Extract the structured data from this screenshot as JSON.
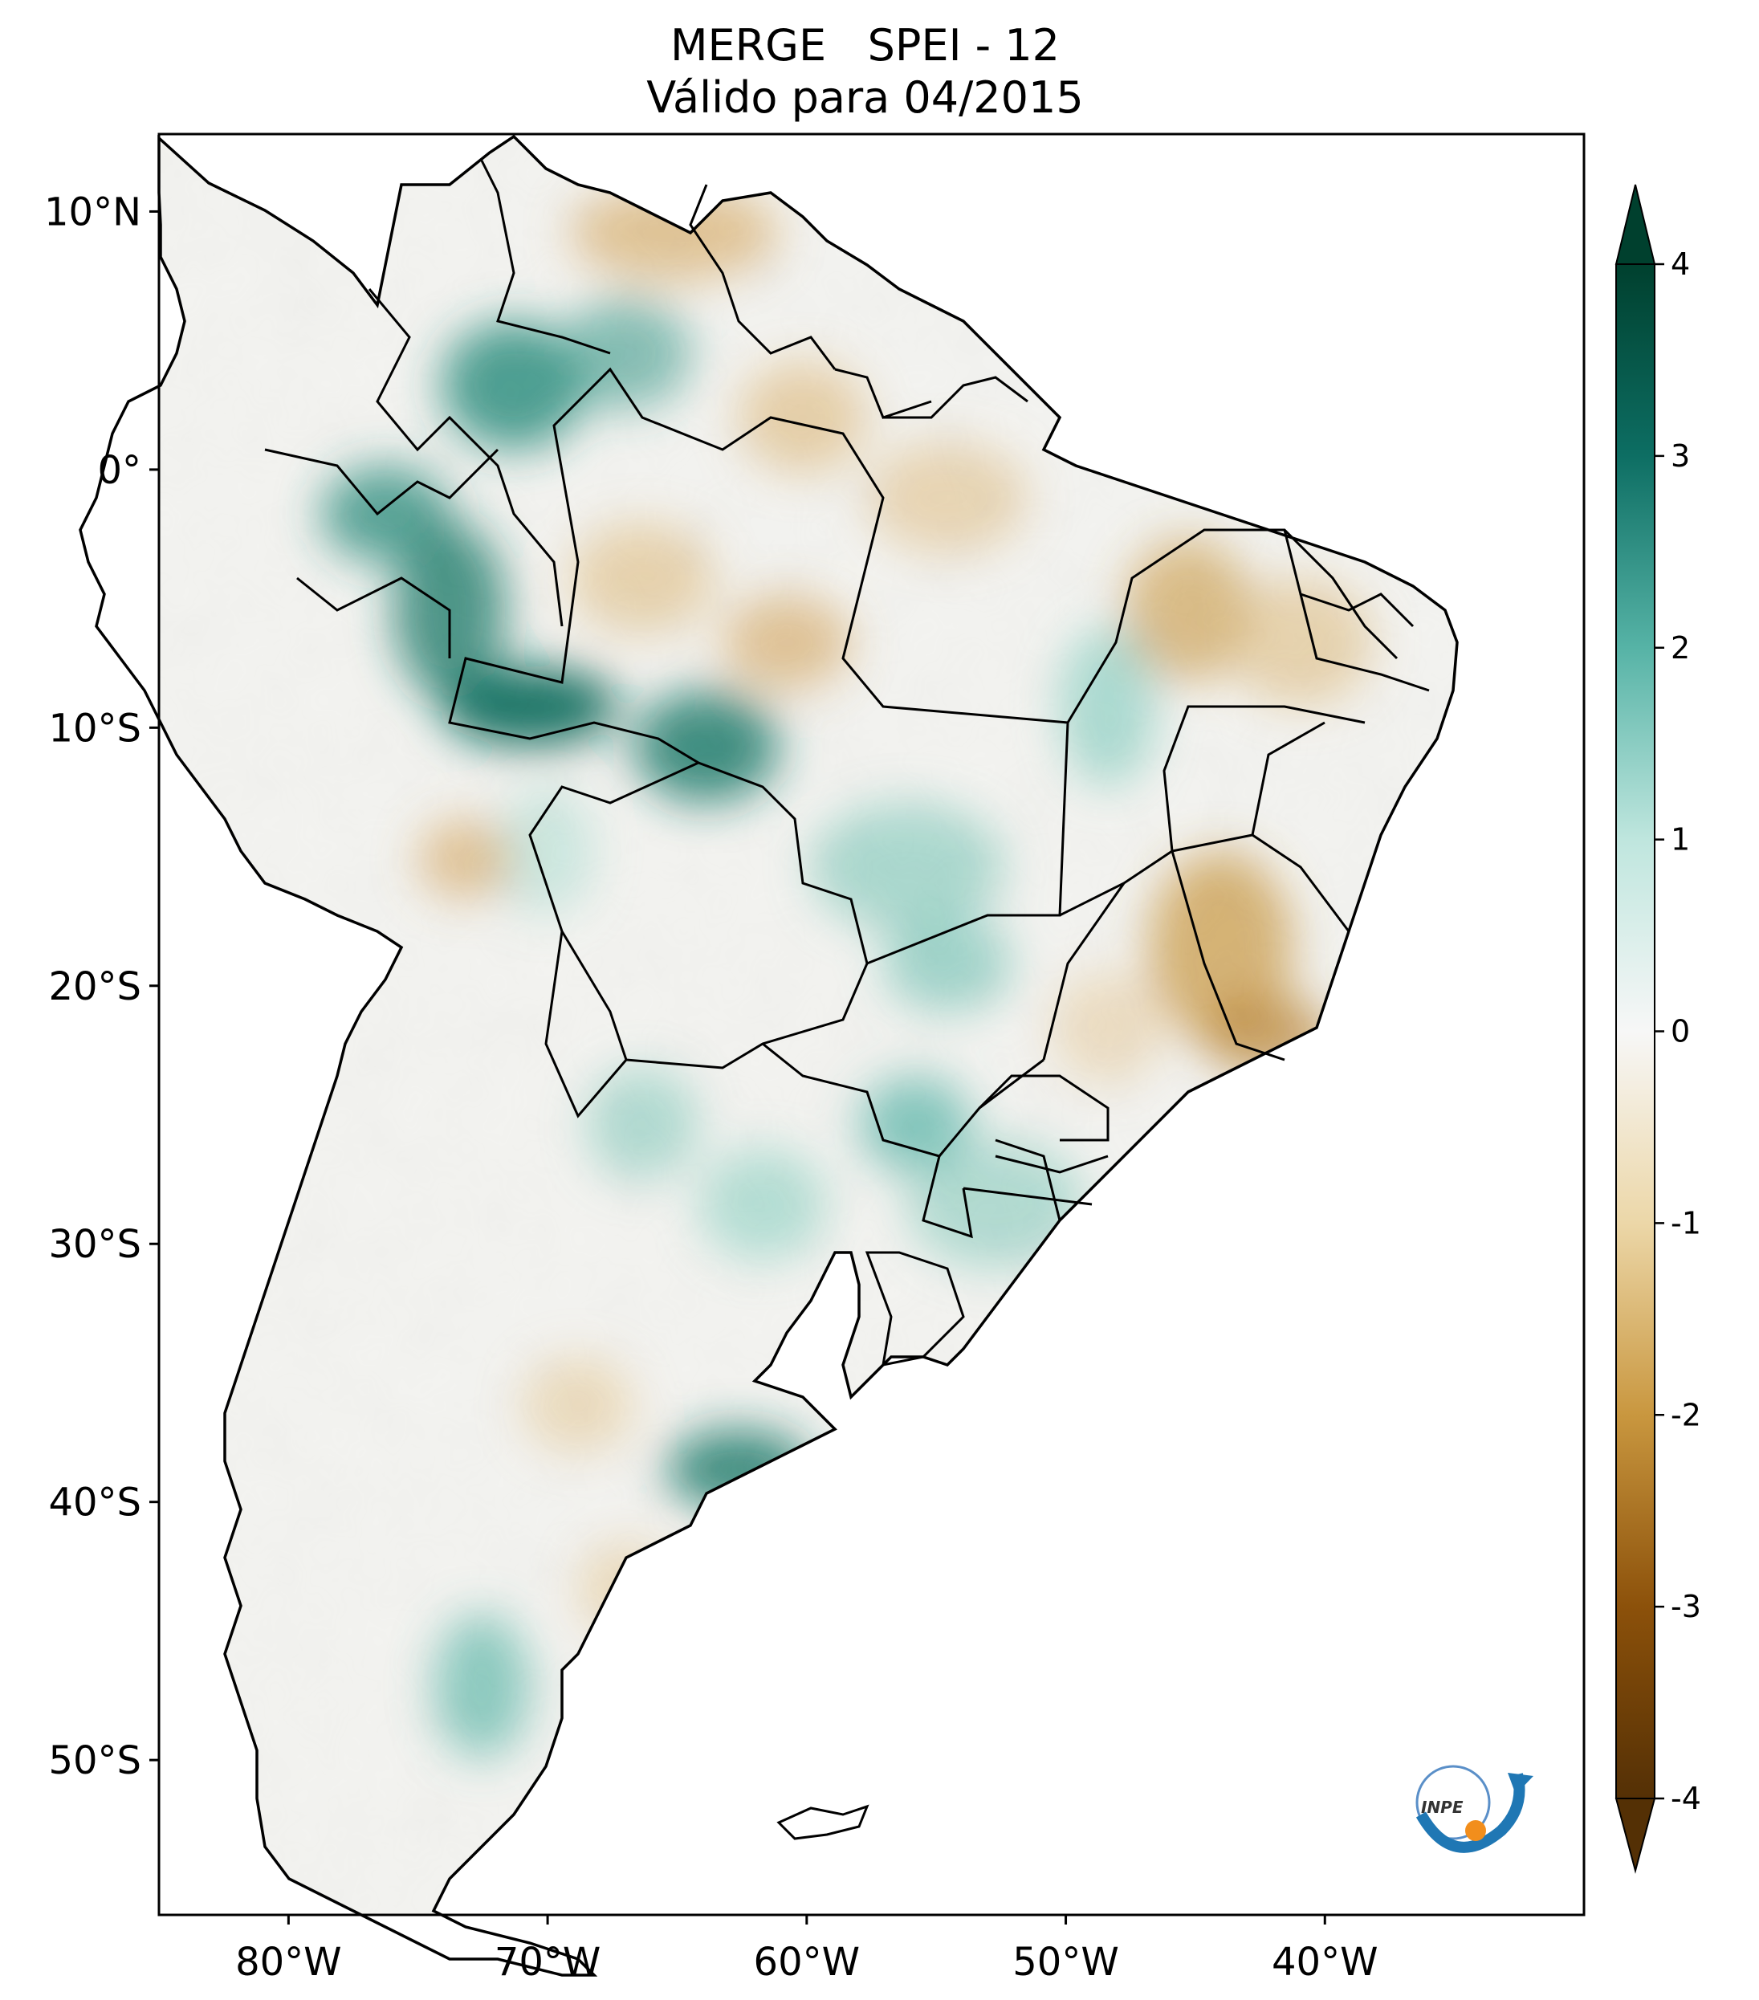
{
  "title": {
    "line1": "MERGE   SPEI - 12",
    "line2": "Válido para 04/2015"
  },
  "map": {
    "extent": {
      "lon": [
        -85,
        -30
      ],
      "lat": [
        -56,
        13
      ]
    },
    "x_ticks": [
      {
        "lon": -80,
        "label": "80°W"
      },
      {
        "lon": -70,
        "label": "70°W"
      },
      {
        "lon": -60,
        "label": "60°W"
      },
      {
        "lon": -50,
        "label": "50°W"
      },
      {
        "lon": -40,
        "label": "40°W"
      }
    ],
    "y_ticks": [
      {
        "lat": 10,
        "label": "10°N"
      },
      {
        "lat": 0,
        "label": "0°"
      },
      {
        "lat": -10,
        "label": "10°S"
      },
      {
        "lat": -20,
        "label": "20°S"
      },
      {
        "lat": -30,
        "label": "30°S"
      },
      {
        "lat": -40,
        "label": "40°S"
      },
      {
        "lat": -50,
        "label": "50°S"
      }
    ]
  },
  "colorbar": {
    "min": -4,
    "max": 4,
    "extend": "both",
    "ticks": [
      {
        "value": 4,
        "label": "4"
      },
      {
        "value": 3,
        "label": "3"
      },
      {
        "value": 2,
        "label": "2"
      },
      {
        "value": 1,
        "label": "1"
      },
      {
        "value": 0,
        "label": "0"
      },
      {
        "value": -1,
        "label": "-1"
      },
      {
        "value": -2,
        "label": "-2"
      },
      {
        "value": -3,
        "label": "-3"
      },
      {
        "value": -4,
        "label": "-4"
      }
    ],
    "colors": {
      "wet_max": "#00402e",
      "wet_3": "#0d6e63",
      "wet_2": "#56b3a6",
      "wet_1": "#bfe6de",
      "neutral": "#f5f5f5",
      "dry_1": "#ecd7a8",
      "dry_2": "#c9973f",
      "dry_3": "#8c510a",
      "dry_max": "#543005"
    }
  },
  "logo": {
    "text": "INPE"
  }
}
